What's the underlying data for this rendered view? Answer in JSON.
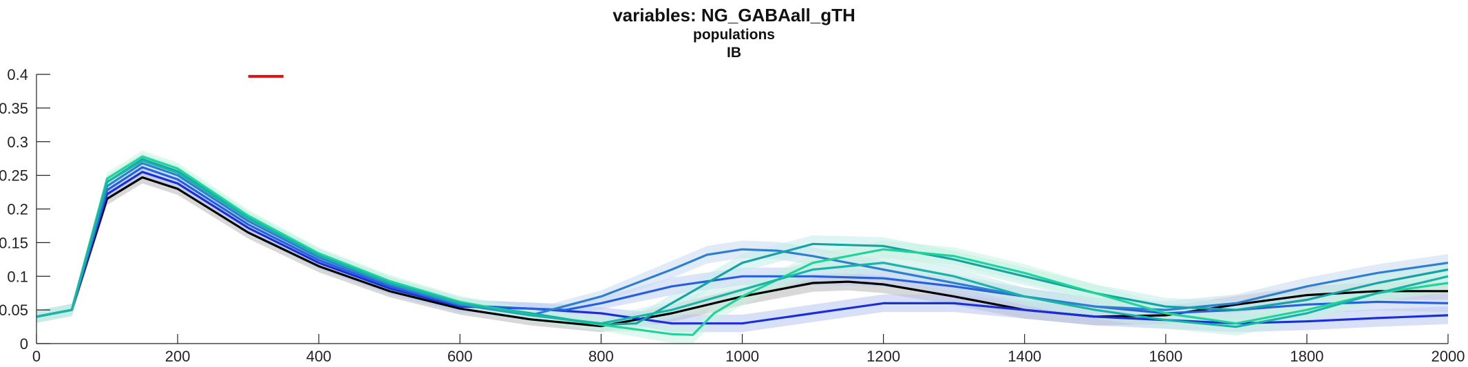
{
  "chart_data": {
    "type": "line",
    "title": "variables: NG_GABAall_gTH",
    "subtitle_lines": [
      "populations",
      "IB"
    ],
    "xlabel": "",
    "ylabel": "",
    "xlim": [
      0,
      2000
    ],
    "ylim": [
      0,
      0.4
    ],
    "x_ticks": [
      0,
      200,
      400,
      600,
      800,
      1000,
      1200,
      1400,
      1600,
      1800,
      2000
    ],
    "y_ticks": [
      0,
      0.05,
      0.1,
      0.15,
      0.2,
      0.25,
      0.3,
      0.35,
      0.4
    ],
    "x_tick_labels": [
      "0",
      "200",
      "400",
      "600",
      "800",
      "1000",
      "1200",
      "1400",
      "1600",
      "1800",
      "2000"
    ],
    "y_tick_labels": [
      "0",
      "0.05",
      "0.1",
      "0.15",
      "0.2",
      "0.25",
      "0.3",
      "0.35",
      "0.4"
    ],
    "grid": false,
    "shaded_error_bands": true,
    "annotation_segment": {
      "x": [
        300,
        350
      ],
      "y": 0.397,
      "color": "#e01010"
    },
    "series": [
      {
        "color": "#000000",
        "band_color": "#b8b8b8",
        "x": [
          0,
          50,
          100,
          150,
          200,
          300,
          400,
          500,
          600,
          700,
          800,
          900,
          1000,
          1100,
          1150,
          1200,
          1300,
          1400,
          1500,
          1600,
          1700,
          1800,
          1900,
          2000
        ],
        "y": [
          0.04,
          0.05,
          0.215,
          0.247,
          0.23,
          0.165,
          0.115,
          0.078,
          0.052,
          0.036,
          0.026,
          0.045,
          0.07,
          0.09,
          0.092,
          0.088,
          0.07,
          0.05,
          0.04,
          0.042,
          0.058,
          0.072,
          0.078,
          0.078
        ]
      },
      {
        "color": "#1a2fd8",
        "band_color": "#b6c6ee",
        "x": [
          0,
          50,
          100,
          150,
          200,
          300,
          400,
          500,
          600,
          700,
          800,
          900,
          1000,
          1100,
          1200,
          1300,
          1400,
          1500,
          1600,
          1700,
          1800,
          1900,
          2000
        ],
        "y": [
          0.04,
          0.05,
          0.222,
          0.255,
          0.238,
          0.172,
          0.12,
          0.082,
          0.055,
          0.052,
          0.045,
          0.03,
          0.03,
          0.045,
          0.06,
          0.06,
          0.05,
          0.04,
          0.035,
          0.03,
          0.033,
          0.038,
          0.042
        ]
      },
      {
        "color": "#2760dc",
        "band_color": "#c0d0f2",
        "x": [
          0,
          50,
          100,
          150,
          200,
          300,
          400,
          500,
          600,
          700,
          750,
          800,
          900,
          1000,
          1100,
          1200,
          1300,
          1400,
          1500,
          1600,
          1700,
          1800,
          1900,
          2000
        ],
        "y": [
          0.04,
          0.05,
          0.228,
          0.262,
          0.244,
          0.177,
          0.124,
          0.085,
          0.057,
          0.052,
          0.05,
          0.06,
          0.085,
          0.1,
          0.1,
          0.097,
          0.085,
          0.07,
          0.055,
          0.045,
          0.05,
          0.058,
          0.062,
          0.06
        ]
      },
      {
        "color": "#2f7fcf",
        "band_color": "#c6daf0",
        "x": [
          0,
          50,
          100,
          150,
          200,
          300,
          400,
          500,
          600,
          700,
          800,
          900,
          950,
          1000,
          1050,
          1100,
          1200,
          1300,
          1400,
          1500,
          1600,
          1700,
          1800,
          1900,
          2000
        ],
        "y": [
          0.04,
          0.05,
          0.234,
          0.268,
          0.25,
          0.182,
          0.128,
          0.088,
          0.058,
          0.042,
          0.07,
          0.11,
          0.132,
          0.14,
          0.138,
          0.13,
          0.11,
          0.09,
          0.07,
          0.055,
          0.05,
          0.06,
          0.085,
          0.105,
          0.12
        ]
      },
      {
        "color": "#16a3a3",
        "band_color": "#c2ecea",
        "x": [
          0,
          50,
          100,
          150,
          200,
          300,
          400,
          500,
          600,
          700,
          800,
          850,
          900,
          1000,
          1100,
          1200,
          1300,
          1400,
          1500,
          1600,
          1700,
          1800,
          1900,
          2000
        ],
        "y": [
          0.04,
          0.05,
          0.24,
          0.274,
          0.256,
          0.187,
          0.132,
          0.091,
          0.06,
          0.045,
          0.028,
          0.03,
          0.06,
          0.12,
          0.148,
          0.145,
          0.125,
          0.1,
          0.075,
          0.055,
          0.05,
          0.065,
          0.09,
          0.11
        ]
      },
      {
        "color": "#1fd49a",
        "band_color": "#c6f2e0",
        "x": [
          0,
          50,
          100,
          150,
          200,
          300,
          400,
          500,
          600,
          700,
          800,
          900,
          930,
          960,
          1000,
          1100,
          1200,
          1300,
          1400,
          1500,
          1600,
          1700,
          1800,
          1900,
          2000
        ],
        "y": [
          0.04,
          0.05,
          0.245,
          0.278,
          0.26,
          0.19,
          0.134,
          0.093,
          0.062,
          0.043,
          0.028,
          0.014,
          0.013,
          0.045,
          0.07,
          0.12,
          0.14,
          0.13,
          0.105,
          0.075,
          0.045,
          0.03,
          0.05,
          0.075,
          0.09
        ]
      },
      {
        "color": "#18b4a8",
        "band_color": "#c6ece6",
        "x": [
          0,
          50,
          100,
          150,
          200,
          300,
          400,
          500,
          600,
          700,
          800,
          900,
          1000,
          1100,
          1200,
          1300,
          1400,
          1500,
          1600,
          1700,
          1800,
          1900,
          2000
        ],
        "y": [
          0.04,
          0.05,
          0.24,
          0.272,
          0.254,
          0.186,
          0.131,
          0.09,
          0.06,
          0.042,
          0.03,
          0.05,
          0.08,
          0.11,
          0.12,
          0.1,
          0.07,
          0.05,
          0.035,
          0.025,
          0.045,
          0.075,
          0.1
        ]
      }
    ]
  }
}
